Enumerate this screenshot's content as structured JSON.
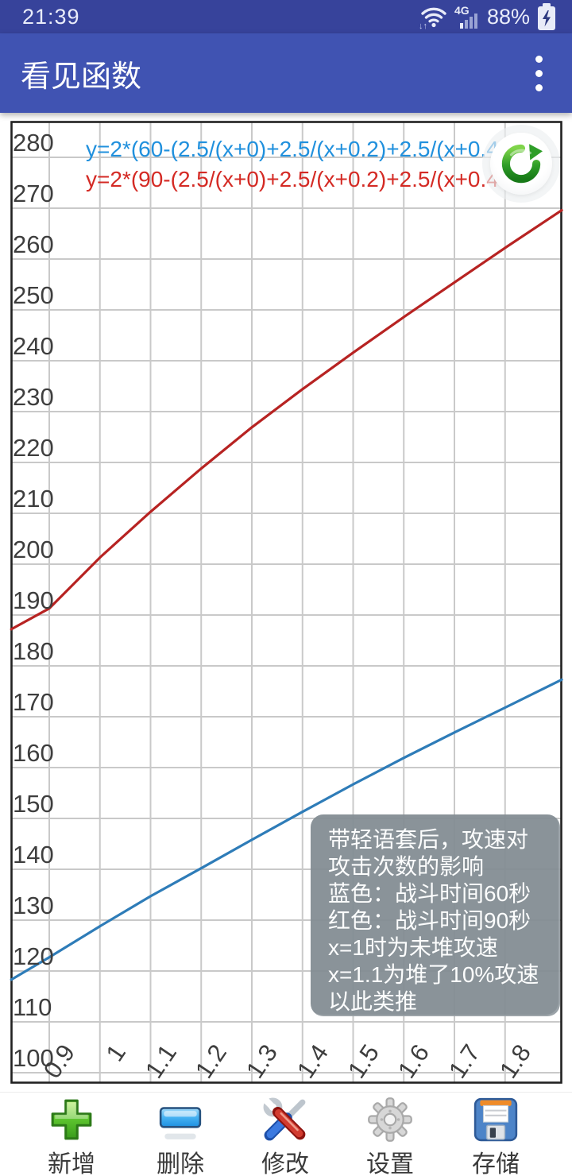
{
  "status_bar": {
    "time": "21:39",
    "battery_percent": "88%",
    "network_label": "4G"
  },
  "app_bar": {
    "title": "看见函数"
  },
  "chart_data": {
    "type": "line",
    "title": "",
    "xlabel": "",
    "ylabel": "",
    "xlim": [
      0.825,
      1.912
    ],
    "ylim": [
      100,
      287
    ],
    "grid": true,
    "x_ticks": [
      "0.9",
      "1",
      "1.1",
      "1.2",
      "1.3",
      "1.4",
      "1.5",
      "1.6",
      "1.7",
      "1.8"
    ],
    "x_tick_values": [
      0.9,
      1.0,
      1.1,
      1.2,
      1.3,
      1.4,
      1.5,
      1.6,
      1.7,
      1.8
    ],
    "y_ticks": [
      280,
      270,
      260,
      250,
      240,
      230,
      220,
      210,
      200,
      190,
      180,
      170,
      160,
      150,
      140,
      130,
      120,
      110,
      100
    ],
    "series": [
      {
        "name": "战斗时间60秒",
        "formula": "y=2*(60-(2.5/(x+0)+2.5/(x+0.2)+2.5/(x+0.4",
        "formula_color": "#2090dd",
        "line_color": "#2e7cb8",
        "x": [
          0.825,
          0.9,
          1.0,
          1.1,
          1.2,
          1.3,
          1.4,
          1.5,
          1.6,
          1.7,
          1.8,
          1.912
        ],
        "y": [
          118.3,
          122.7,
          128.8,
          134.7,
          140.2,
          145.8,
          151.3,
          156.7,
          161.9,
          166.9,
          171.8,
          177.3
        ]
      },
      {
        "name": "战斗时间90秒",
        "formula": "y=2*(90-(2.5/(x+0)+2.5/(x+0.2)+2.5/(x+0.4",
        "formula_color": "#d42a24",
        "line_color": "#b72322",
        "x": [
          0.825,
          0.9,
          1.0,
          1.1,
          1.2,
          1.3,
          1.4,
          1.5,
          1.6,
          1.7,
          1.8,
          1.912
        ],
        "y": [
          187.2,
          191.3,
          201.3,
          210.3,
          218.8,
          226.9,
          234.4,
          241.6,
          248.6,
          255.4,
          262.2,
          269.6
        ]
      }
    ],
    "annotation": {
      "lines": [
        "带轻语套后，攻速对",
        "攻击次数的影响",
        "蓝色：战斗时间60秒",
        "红色：战斗时间90秒",
        "x=1时为未堆攻速",
        "x=1.1为堆了10%攻速",
        "以此类推"
      ]
    }
  },
  "toolbar": {
    "items": [
      {
        "label": "新增",
        "icon": "add-icon"
      },
      {
        "label": "删除",
        "icon": "delete-icon"
      },
      {
        "label": "修改",
        "icon": "modify-icon"
      },
      {
        "label": "设置",
        "icon": "settings-icon"
      },
      {
        "label": "存储",
        "icon": "save-icon"
      }
    ]
  },
  "colors": {
    "status_bar_bg": "#37439b",
    "app_bar_bg": "#4053b2",
    "grid": "#c9c9c9",
    "plot_border": "#212121",
    "tick_text": "#3e3e3e",
    "tooltip_bg": "#838c93",
    "tooltip_text": "#fcfdfd"
  }
}
